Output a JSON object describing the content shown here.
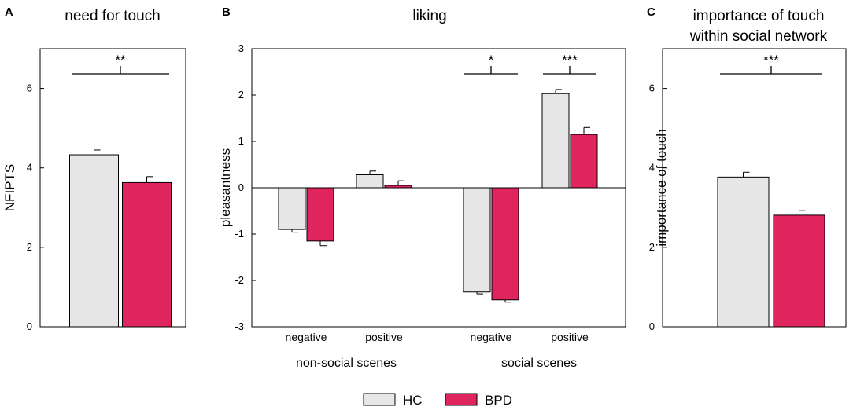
{
  "panels": [
    {
      "letter": "A",
      "title": "need for touch"
    },
    {
      "letter": "B",
      "title": "liking"
    },
    {
      "letter": "C",
      "title_lines": [
        "importance of touch",
        "within social network"
      ]
    }
  ],
  "legend": [
    {
      "label": "HC",
      "color": "#e6e6e6"
    },
    {
      "label": "BPD",
      "color": "#e0245e"
    }
  ],
  "chart_data": [
    {
      "type": "bar",
      "title": "need for touch",
      "ylabel": "NFIPTS",
      "ylim": [
        0,
        7
      ],
      "yticks": [
        "0",
        "2",
        "4",
        "6"
      ],
      "categories": [
        ""
      ],
      "series": [
        {
          "name": "HC",
          "values": [
            4.33
          ],
          "errors": [
            0.12
          ]
        },
        {
          "name": "BPD",
          "values": [
            3.63
          ],
          "errors": [
            0.15
          ]
        }
      ],
      "significance": [
        {
          "label": "**",
          "group": 0
        }
      ]
    },
    {
      "type": "bar",
      "title": "liking",
      "ylabel": "pleasantness",
      "ylim": [
        -3,
        3
      ],
      "yticks": [
        "-3",
        "-2",
        "-1",
        "0",
        "1",
        "2",
        "3"
      ],
      "categories": [
        "negative",
        "positive",
        "negative",
        "positive"
      ],
      "groups": [
        {
          "label": "non-social scenes",
          "categories": [
            0,
            1
          ]
        },
        {
          "label": "social scenes",
          "categories": [
            2,
            3
          ]
        }
      ],
      "series": [
        {
          "name": "HC",
          "values": [
            -0.9,
            0.28,
            -2.25,
            2.03
          ],
          "errors": [
            0.06,
            0.08,
            0.04,
            0.09
          ]
        },
        {
          "name": "BPD",
          "values": [
            -1.15,
            0.05,
            -2.42,
            1.15
          ],
          "errors": [
            0.1,
            0.1,
            0.05,
            0.15
          ]
        }
      ],
      "significance": [
        {
          "label": "*",
          "group": 2
        },
        {
          "label": "***",
          "group": 3
        }
      ]
    },
    {
      "type": "bar",
      "title": "importance of touch within social network",
      "ylabel": "importance of touch",
      "ylim": [
        0,
        7
      ],
      "yticks": [
        "0",
        "2",
        "4",
        "6"
      ],
      "categories": [
        ""
      ],
      "series": [
        {
          "name": "HC",
          "values": [
            3.77
          ],
          "errors": [
            0.12
          ]
        },
        {
          "name": "BPD",
          "values": [
            2.81
          ],
          "errors": [
            0.12
          ]
        }
      ],
      "significance": [
        {
          "label": "***",
          "group": 0
        }
      ]
    }
  ]
}
